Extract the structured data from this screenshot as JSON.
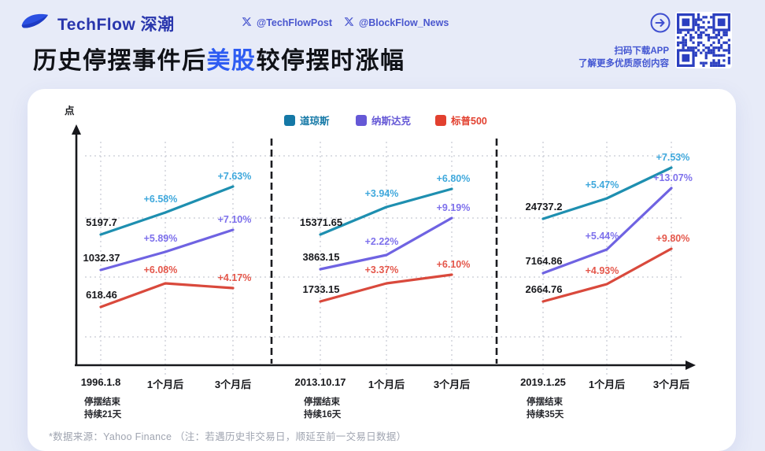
{
  "header": {
    "brand": "TechFlow 深潮",
    "handles": [
      {
        "label": "@TechFlowPost"
      },
      {
        "label": "@BlockFlow_News"
      }
    ],
    "title": {
      "pre": "历史停摆事件后",
      "highlight": "美股",
      "post": "较停摆时涨幅"
    },
    "download": {
      "line1": "扫码下载APP",
      "line2": "了解更多优质原创内容"
    },
    "icons": {
      "x_icon": "x-logo",
      "arrow_icon": "arrow-right-circle",
      "qr_icon": "qr-code"
    },
    "colors": {
      "brand_blue": "#2936AD",
      "link_blue": "#4A57CE",
      "title_highlight": "#2E5CF2",
      "qr_blue": "#2B3FC0"
    }
  },
  "chart": {
    "unit_label": "点",
    "footnote": "*数据来源：Yahoo Finance （注：若遇历史非交易日，顺延至前一交易日数据）"
  },
  "chart_data": {
    "type": "line",
    "title": "历史停摆事件后美股较停摆时涨幅",
    "ylabel": "点",
    "legend_position": "top",
    "grid": true,
    "legend": [
      {
        "name": "道琼斯",
        "line_color": "#1E8FB0",
        "label_color": "#3FA8DC",
        "swatch_color": "#1478A6"
      },
      {
        "name": "纳斯达克",
        "line_color": "#6F63E2",
        "label_color": "#7E71EC",
        "swatch_color": "#6558D6"
      },
      {
        "name": "标普500",
        "line_color": "#D9493C",
        "label_color": "#E4574B",
        "swatch_color": "#E2402F"
      }
    ],
    "groups": [
      {
        "date": "1996.1.8",
        "note": [
          "停摆结束",
          "持续21天"
        ],
        "x_labels": [
          "1996.1.8",
          "1个月后",
          "3个月后"
        ],
        "series": [
          {
            "name": "道琼斯",
            "start_value": "5197.7",
            "pct_1m": "+6.58%",
            "pct_3m": "+7.63%"
          },
          {
            "name": "纳斯达克",
            "start_value": "1032.37",
            "pct_1m": "+5.89%",
            "pct_3m": "+7.10%"
          },
          {
            "name": "标普500",
            "start_value": "618.46",
            "pct_1m": "+6.08%",
            "pct_3m": "+4.17%"
          }
        ]
      },
      {
        "date": "2013.10.17",
        "note": [
          "停摆结束",
          "持续16天"
        ],
        "x_labels": [
          "2013.10.17",
          "1个月后",
          "3个月后"
        ],
        "series": [
          {
            "name": "道琼斯",
            "start_value": "15371.65",
            "pct_1m": "+3.94%",
            "pct_3m": "+6.80%"
          },
          {
            "name": "纳斯达克",
            "start_value": "3863.15",
            "pct_1m": "+2.22%",
            "pct_3m": "+9.19%"
          },
          {
            "name": "标普500",
            "start_value": "1733.15",
            "pct_1m": "+3.37%",
            "pct_3m": "+6.10%"
          }
        ]
      },
      {
        "date": "2019.1.25",
        "note": [
          "停摆结束",
          "持续35天"
        ],
        "x_labels": [
          "2019.1.25",
          "1个月后",
          "3个月后"
        ],
        "series": [
          {
            "name": "道琼斯",
            "start_value": "24737.2",
            "pct_1m": "+5.47%",
            "pct_3m": "+7.53%"
          },
          {
            "name": "纳斯达克",
            "start_value": "7164.86",
            "pct_1m": "+5.44%",
            "pct_3m": "+13.07%"
          },
          {
            "name": "标普500",
            "start_value": "2664.76",
            "pct_1m": "+4.93%",
            "pct_3m": "+9.80%"
          }
        ]
      }
    ]
  }
}
